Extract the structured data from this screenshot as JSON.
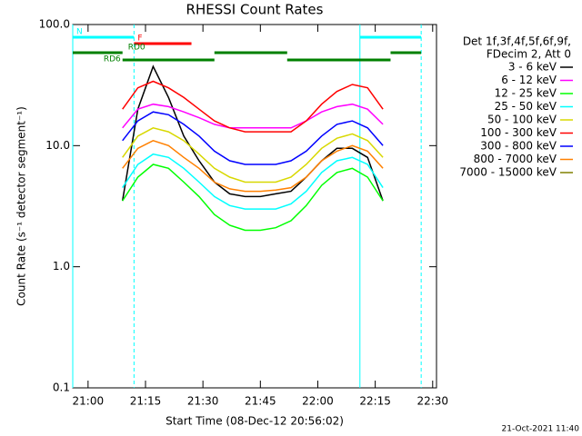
{
  "chart_data": {
    "type": "line",
    "title": "RHESSI Count Rates",
    "xlabel": "Start Time (08-Dec-12 20:56:02)",
    "ylabel": "Count Rate (s⁻¹ detector segment⁻¹)",
    "timestamp": "21-Oct-2021 11:40",
    "log_y": true,
    "xlim": [
      "20:56",
      "22:31"
    ],
    "xticks": [
      "21:00",
      "21:15",
      "21:30",
      "21:45",
      "22:00",
      "22:15",
      "22:30"
    ],
    "ylim": [
      0.1,
      100
    ],
    "yticks": [
      {
        "value": 0.1,
        "label": "0.1"
      },
      {
        "value": 1,
        "label": "1.0"
      },
      {
        "value": 10,
        "label": "10.0"
      },
      {
        "value": 100,
        "label": "100.0"
      }
    ],
    "legend_header": [
      "Det 1f,3f,4f,5f,6f,9f,",
      "FDecim 2, Att 0"
    ],
    "x": [
      "21:09",
      "21:13",
      "21:17",
      "21:21",
      "21:25",
      "21:29",
      "21:33",
      "21:37",
      "21:41",
      "21:45",
      "21:49",
      "21:53",
      "21:57",
      "22:01",
      "22:05",
      "22:09",
      "22:13",
      "22:17"
    ],
    "series": [
      {
        "name": "3 - 6 keV",
        "color": "#000000",
        "values": [
          3.5,
          20,
          45,
          25,
          12,
          7.5,
          5,
          4,
          3.8,
          3.8,
          4,
          4.2,
          5.5,
          7.5,
          9.5,
          9.5,
          8,
          3.5
        ]
      },
      {
        "name": "6 - 12 keV",
        "color": "#ff00ff",
        "values": [
          14,
          20,
          22,
          21,
          19,
          17,
          15,
          14,
          14,
          14,
          14,
          14,
          16,
          19,
          21,
          22,
          20,
          15
        ]
      },
      {
        "name": "12 - 25 keV",
        "color": "#00ff00",
        "values": [
          3.5,
          5.5,
          7,
          6.5,
          5,
          3.8,
          2.7,
          2.2,
          2,
          2,
          2.1,
          2.4,
          3.2,
          4.7,
          6,
          6.5,
          5.5,
          3.5
        ]
      },
      {
        "name": "25 - 50 keV",
        "color": "#00ffff",
        "values": [
          4.5,
          7,
          8.5,
          8,
          6.5,
          5,
          3.8,
          3.2,
          3,
          3,
          3,
          3.3,
          4.2,
          6,
          7.5,
          8,
          7,
          4.5
        ]
      },
      {
        "name": "50 - 100 keV",
        "color": "#d8d800",
        "values": [
          8,
          12,
          14,
          13,
          11,
          8.5,
          6.5,
          5.5,
          5,
          5,
          5,
          5.5,
          7,
          9.5,
          11.5,
          12.5,
          11,
          8
        ]
      },
      {
        "name": "100 - 300 keV",
        "color": "#ff0000",
        "values": [
          20,
          30,
          34,
          30,
          25,
          20,
          16,
          14,
          13,
          13,
          13,
          13,
          16,
          22,
          28,
          32,
          30,
          20
        ]
      },
      {
        "name": "300 - 800 keV",
        "color": "#0000ff",
        "values": [
          11,
          16,
          19,
          18,
          15,
          12,
          9,
          7.5,
          7,
          7,
          7,
          7.5,
          9,
          12,
          15,
          16,
          14,
          10
        ]
      },
      {
        "name": "800 - 7000 keV",
        "color": "#ff8000",
        "values": [
          6.5,
          9.5,
          11,
          10,
          8,
          6.5,
          5,
          4.4,
          4.2,
          4.2,
          4.3,
          4.5,
          5.5,
          7.5,
          9,
          10,
          9,
          6.5
        ]
      },
      {
        "name": "7000 - 15000 keV",
        "color": "#808000",
        "values": [
          null,
          null,
          null,
          null,
          null,
          null,
          null,
          null,
          null,
          null,
          null,
          null,
          null,
          null,
          null,
          null,
          null,
          null
        ]
      }
    ],
    "flags": [
      {
        "label": "N",
        "color": "#00ffff",
        "segments": [
          [
            "20:56",
            "21:12"
          ],
          [
            "22:11",
            "22:27"
          ]
        ]
      },
      {
        "label": "F",
        "color": "#ff0000",
        "segments": [
          [
            "21:12",
            "21:27"
          ]
        ]
      },
      {
        "label": "RD0",
        "color": "#008000",
        "segments": [
          [
            "20:56",
            "21:09"
          ],
          [
            "21:33",
            "21:52"
          ],
          [
            "22:19",
            "22:27"
          ]
        ]
      },
      {
        "label": "RD6",
        "color": "#008000",
        "segments": [
          [
            "21:09",
            "21:33"
          ],
          [
            "21:52",
            "22:19"
          ]
        ]
      }
    ],
    "markers": [
      {
        "time": "20:56",
        "color": "#00ffff",
        "style": "solid"
      },
      {
        "time": "21:12",
        "color": "#00ffff",
        "style": "dashed"
      },
      {
        "time": "22:11",
        "color": "#00ffff",
        "style": "solid"
      },
      {
        "time": "22:27",
        "color": "#00ffff",
        "style": "dashed"
      }
    ]
  }
}
